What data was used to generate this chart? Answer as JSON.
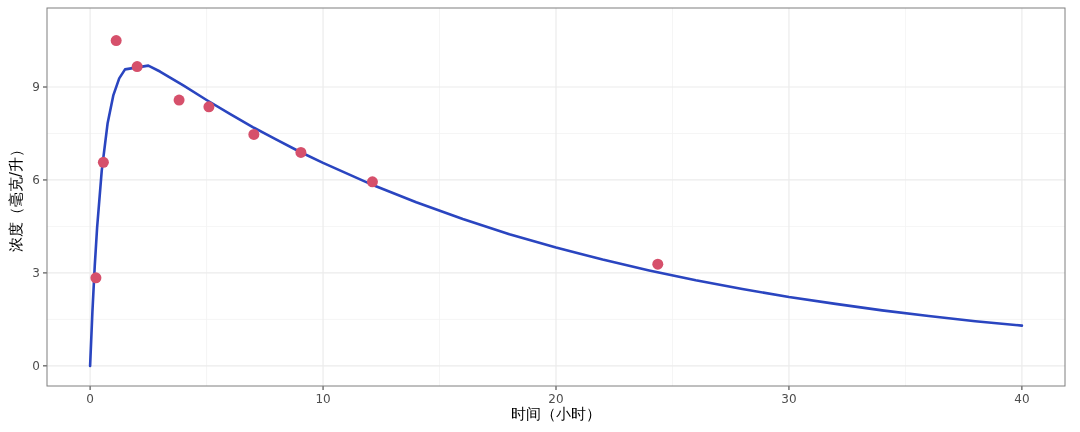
{
  "chart_data": {
    "type": "scatter",
    "xlabel": "时间（小时）",
    "ylabel": "浓度（毫克/升）",
    "xlim": [
      -1.85,
      41.85
    ],
    "ylim": [
      -0.65,
      11.55
    ],
    "xticks": [
      0,
      10,
      20,
      30,
      40
    ],
    "yticks": [
      0,
      3,
      6,
      9
    ],
    "grid": true,
    "series": [
      {
        "type": "line",
        "color": "#2a45c0",
        "x": [
          0,
          0.1,
          0.2,
          0.3,
          0.5,
          0.75,
          1,
          1.25,
          1.5,
          2.5,
          3,
          4,
          5,
          6,
          7,
          8,
          9,
          10,
          12,
          14,
          16,
          18,
          20,
          22,
          24,
          26,
          28,
          30,
          32,
          34,
          36,
          38,
          40
        ],
        "values": [
          0,
          1.76,
          3.23,
          4.45,
          6.3,
          7.82,
          8.74,
          9.28,
          9.57,
          9.69,
          9.5,
          9.05,
          8.58,
          8.13,
          7.7,
          7.3,
          6.91,
          6.55,
          5.88,
          5.28,
          4.74,
          4.25,
          3.82,
          3.43,
          3.08,
          2.76,
          2.48,
          2.22,
          2.0,
          1.79,
          1.61,
          1.44,
          1.3
        ]
      },
      {
        "color": "#d6506b",
        "x": [
          0.25,
          0.57,
          1.12,
          2.02,
          3.82,
          5.1,
          7.03,
          9.05,
          12.12,
          24.37
        ],
        "values": [
          2.84,
          6.57,
          10.5,
          9.66,
          8.58,
          8.36,
          7.47,
          6.89,
          5.94,
          3.28
        ]
      }
    ]
  }
}
